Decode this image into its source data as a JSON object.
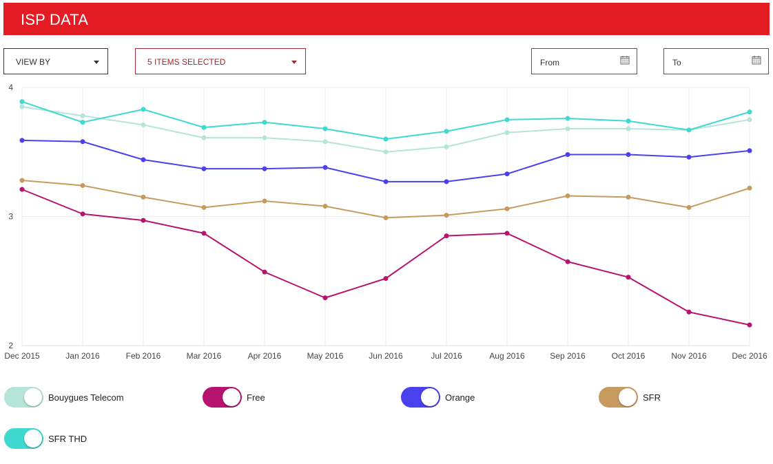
{
  "header": {
    "title": "ISP DATA",
    "color": "#e31b23"
  },
  "controls": {
    "view_by": {
      "label": "VIEW BY"
    },
    "items_selected": {
      "label": "5 ITEMS SELECTED"
    },
    "from": {
      "label": "From"
    },
    "to": {
      "label": "To"
    }
  },
  "chart_data": {
    "type": "line",
    "categories": [
      "Dec 2015",
      "Jan 2016",
      "Feb 2016",
      "Mar 2016",
      "Apr 2016",
      "May 2016",
      "Jun 2016",
      "Jul 2016",
      "Aug 2016",
      "Sep 2016",
      "Oct 2016",
      "Nov 2016",
      "Dec 2016"
    ],
    "ylim": [
      2,
      4
    ],
    "yticks": [
      2,
      3,
      4
    ],
    "series": [
      {
        "name": "Bouygues Telecom",
        "color": "#b6e4d8",
        "values": [
          3.85,
          3.78,
          3.71,
          3.61,
          3.61,
          3.58,
          3.5,
          3.54,
          3.65,
          3.68,
          3.68,
          3.67,
          3.75
        ]
      },
      {
        "name": "Free",
        "color": "#b5136e",
        "values": [
          3.21,
          3.02,
          2.97,
          2.87,
          2.57,
          2.37,
          2.52,
          2.85,
          2.87,
          2.65,
          2.53,
          2.26,
          2.16
        ]
      },
      {
        "name": "Orange",
        "color": "#4a40ee",
        "values": [
          3.59,
          3.58,
          3.44,
          3.37,
          3.37,
          3.38,
          3.27,
          3.27,
          3.33,
          3.48,
          3.48,
          3.46,
          3.51
        ]
      },
      {
        "name": "SFR",
        "color": "#c79a5e",
        "values": [
          3.28,
          3.24,
          3.15,
          3.07,
          3.12,
          3.08,
          2.99,
          3.01,
          3.06,
          3.16,
          3.15,
          3.07,
          3.22
        ]
      },
      {
        "name": "SFR THD",
        "color": "#3fd9d0",
        "values": [
          3.89,
          3.73,
          3.83,
          3.69,
          3.73,
          3.68,
          3.6,
          3.66,
          3.75,
          3.76,
          3.74,
          3.67,
          3.81
        ]
      }
    ]
  },
  "legend": {
    "items": [
      {
        "label": "Bouygues Telecom",
        "color": "#b6e4d8"
      },
      {
        "label": "Free",
        "color": "#b5136e"
      },
      {
        "label": "Orange",
        "color": "#4a40ee"
      },
      {
        "label": "SFR",
        "color": "#c79a5e"
      },
      {
        "label": "SFR THD",
        "color": "#3fd9d0"
      }
    ]
  }
}
